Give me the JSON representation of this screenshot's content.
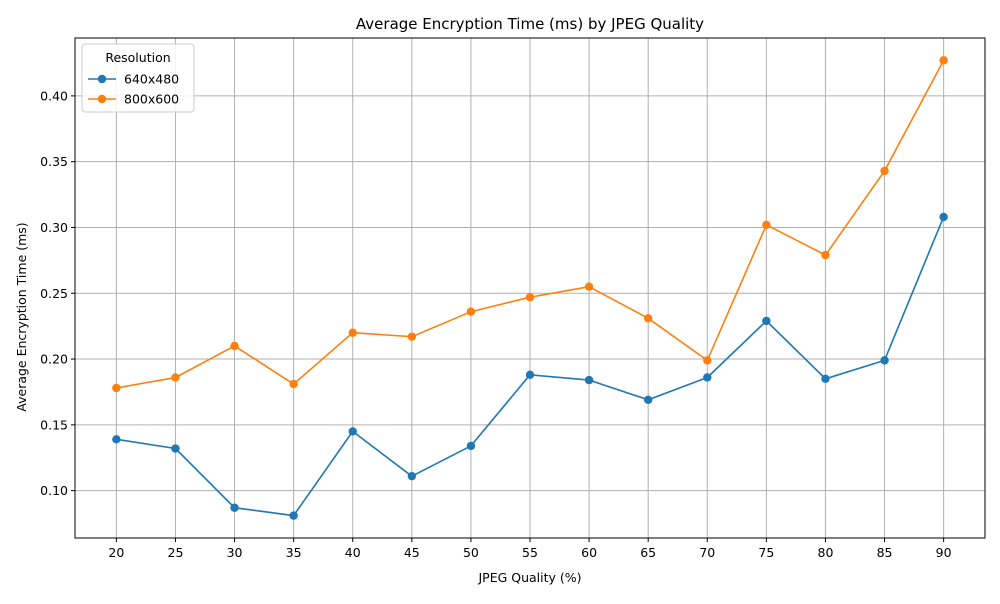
{
  "chart_data": {
    "type": "line",
    "title": "Average Encryption Time (ms) by JPEG Quality",
    "xlabel": "JPEG Quality (%)",
    "ylabel": "Average Encryption Time (ms)",
    "x": [
      20,
      25,
      30,
      35,
      40,
      45,
      50,
      55,
      60,
      65,
      70,
      75,
      80,
      85,
      90
    ],
    "xlim": [
      16.5,
      93.5
    ],
    "ylim": [
      0.064,
      0.444
    ],
    "yticks": [
      0.1,
      0.15,
      0.2,
      0.25,
      0.3,
      0.35,
      0.4
    ],
    "ytick_labels": [
      "0.10",
      "0.15",
      "0.20",
      "0.25",
      "0.30",
      "0.35",
      "0.40"
    ],
    "grid": true,
    "legend": {
      "title": "Resolution",
      "position": "top-left"
    },
    "series": [
      {
        "name": "640x480",
        "color": "#1f77b4",
        "values": [
          0.139,
          0.132,
          0.087,
          0.081,
          0.145,
          0.111,
          0.134,
          0.188,
          0.184,
          0.169,
          0.186,
          0.229,
          0.185,
          0.199,
          0.308
        ]
      },
      {
        "name": "800x600",
        "color": "#ff7f0e",
        "values": [
          0.178,
          0.186,
          0.21,
          0.181,
          0.22,
          0.217,
          0.236,
          0.247,
          0.255,
          0.231,
          0.199,
          0.302,
          0.279,
          0.343,
          0.427
        ]
      }
    ]
  }
}
